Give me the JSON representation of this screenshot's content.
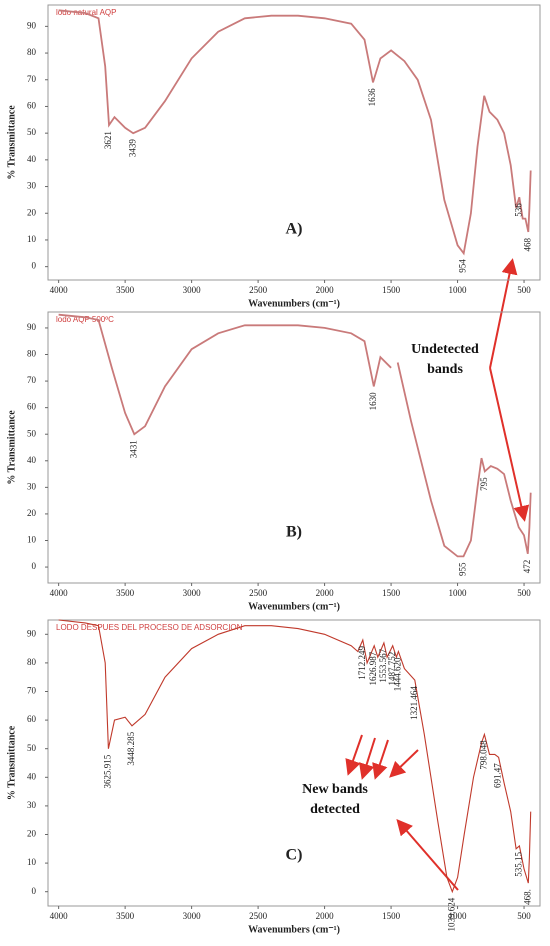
{
  "chart_data": [
    {
      "type": "line",
      "title": "lodo natural AQP",
      "panel_label": "A)",
      "xlabel": "Wavenumbers (cm⁻¹)",
      "ylabel": "% Transmittance",
      "annotation": "Undetected bands",
      "color": "#c97a7a",
      "x": [
        4000,
        3800,
        3700,
        3650,
        3621,
        3580,
        3500,
        3439,
        3350,
        3200,
        3000,
        2800,
        2600,
        2400,
        2200,
        2000,
        1800,
        1700,
        1636,
        1580,
        1500,
        1400,
        1300,
        1200,
        1100,
        1000,
        954,
        900,
        850,
        800,
        760,
        700,
        650,
        600,
        560,
        536,
        510,
        490,
        468,
        460,
        450
      ],
      "values": [
        96,
        95,
        93,
        75,
        53,
        56,
        52,
        50,
        52,
        62,
        78,
        88,
        93,
        94,
        94,
        93,
        91,
        85,
        69,
        78,
        81,
        77,
        70,
        55,
        25,
        8,
        5,
        20,
        45,
        64,
        58,
        55,
        50,
        38,
        22,
        26,
        18,
        18,
        13,
        22,
        36
      ],
      "peaks": [
        3621,
        3439,
        1636,
        954,
        536,
        468
      ],
      "xlim": [
        4080,
        380
      ],
      "xticks": [
        4000,
        3500,
        3000,
        2500,
        2000,
        1500,
        1000,
        500
      ],
      "ylim": [
        -5,
        98
      ],
      "yticks": [
        0,
        10,
        20,
        30,
        40,
        50,
        60,
        70,
        80,
        90
      ]
    },
    {
      "type": "line",
      "title": "lodo AQP 500ºC",
      "panel_label": "B)",
      "xlabel": "Wavenumbers (cm⁻¹)",
      "ylabel": "% Transmittance",
      "color": "#c97a7a",
      "x": [
        4000,
        3800,
        3700,
        3600,
        3500,
        3431,
        3350,
        3200,
        3000,
        2800,
        2600,
        2400,
        2200,
        2000,
        1800,
        1700,
        1630,
        1580,
        1500,
        1480,
        1450,
        1350,
        1200,
        1100,
        1000,
        955,
        900,
        850,
        820,
        795,
        750,
        700,
        650,
        600,
        540,
        500,
        472,
        460,
        450
      ],
      "values": [
        95,
        94,
        93,
        75,
        58,
        50,
        53,
        68,
        82,
        88,
        91,
        91,
        91,
        90,
        88,
        85,
        68,
        79,
        75,
        null,
        77,
        55,
        25,
        8,
        4,
        4,
        10,
        30,
        41,
        36,
        38,
        37,
        35,
        25,
        15,
        12,
        5,
        15,
        28
      ],
      "peaks": [
        3431,
        1630,
        955,
        795,
        472
      ],
      "xlim": [
        4080,
        380
      ],
      "xticks": [
        4000,
        3500,
        3000,
        2500,
        2000,
        1500,
        1000,
        500
      ],
      "ylim": [
        -6,
        96
      ],
      "yticks": [
        0,
        10,
        20,
        30,
        40,
        50,
        60,
        70,
        80,
        90
      ]
    },
    {
      "type": "line",
      "title": "LODO DESPUES DEL PROCESO DE ADSORCION",
      "panel_label": "C)",
      "xlabel": "Wavenumbers (cm⁻¹)",
      "ylabel": "% Transmittance",
      "annotation": "New bands detected",
      "color": "#c0392b",
      "x": [
        4000,
        3800,
        3700,
        3650,
        3625.915,
        3580,
        3500,
        3448.285,
        3350,
        3200,
        3000,
        2800,
        2600,
        2400,
        2200,
        2000,
        1800,
        1750,
        1712.249,
        1680,
        1626.987,
        1600,
        1553.567,
        1530,
        1487.752,
        1460,
        1444.62,
        1400,
        1321.464,
        1250,
        1150,
        1080,
        1039.624,
        1000,
        950,
        880,
        820,
        798.048,
        760,
        720,
        691.47,
        650,
        600,
        560,
        535.15,
        500,
        468,
        460,
        450
      ],
      "values": [
        95,
        94,
        93,
        80,
        50,
        60,
        61,
        58,
        62,
        75,
        85,
        90,
        93,
        93,
        92,
        90,
        86,
        84,
        88,
        80,
        86,
        82,
        87,
        82,
        86,
        82,
        84,
        78,
        74,
        55,
        25,
        5,
        0,
        5,
        20,
        40,
        52,
        55,
        48,
        48,
        47,
        38,
        28,
        15,
        16,
        8,
        3,
        12,
        28
      ],
      "peaks": [
        3625.915,
        3448.285,
        1712.249,
        1626.987,
        1553.567,
        1487.752,
        {
          "value": 1444.62,
          "label": "1444.620"
        },
        1321.464,
        1039.624,
        798.048,
        691.47,
        535.15,
        {
          "value": 468,
          "label": "468."
        }
      ],
      "xlim": [
        4080,
        380
      ],
      "xticks": [
        4000,
        3500,
        3000,
        2500,
        2000,
        1500,
        1000,
        500
      ],
      "ylim": [
        -5,
        95
      ],
      "yticks": [
        0,
        10,
        20,
        30,
        40,
        50,
        60,
        70,
        80,
        90
      ]
    }
  ]
}
